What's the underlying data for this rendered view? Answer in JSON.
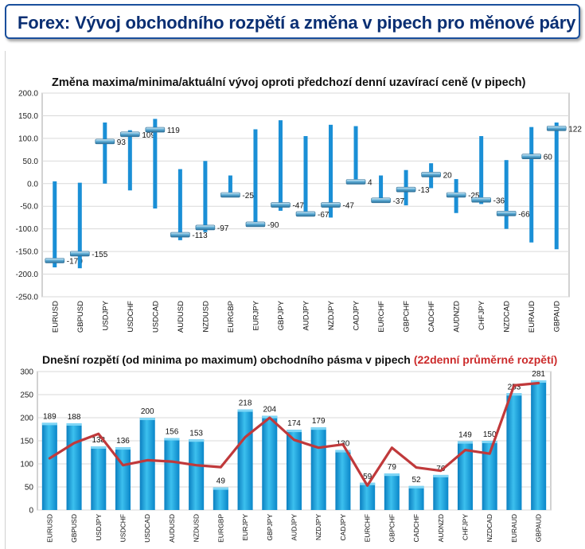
{
  "header": {
    "title": "Forex: Vývoj obchodního rozpětí a změna v pipech pro měnové páry"
  },
  "chart_data": [
    {
      "type": "bar",
      "title": "Změna maxima/minima/aktuální vývoj oproti předchozí denní uzavírací ceně (v pipech)",
      "categories": [
        "EURUSD",
        "GBPUSD",
        "USDJPY",
        "USDCHF",
        "USDCAD",
        "AUDUSD",
        "NZDUSD",
        "EURGBP",
        "EURJPY",
        "GBPJPY",
        "AUDJPY",
        "NZDJPY",
        "CADJPY",
        "EURCHF",
        "GBPCHF",
        "CADCHF",
        "AUDNZD",
        "CHFJPY",
        "NZDCAD",
        "EURAUD",
        "GBPAUD"
      ],
      "series": [
        {
          "values": [
            5,
            2,
            135,
            118,
            143,
            32,
            50,
            18,
            120,
            140,
            105,
            130,
            127,
            18,
            30,
            45,
            10,
            105,
            52,
            125,
            135
          ]
        },
        {
          "values": [
            -185,
            -187,
            0,
            -15,
            -55,
            -125,
            -107,
            -28,
            -95,
            -60,
            -72,
            -75,
            0,
            -40,
            -48,
            -10,
            -65,
            -45,
            -100,
            -130,
            -145
          ]
        },
        {
          "values": [
            -170,
            -155,
            93,
            109,
            119,
            -113,
            -97,
            -25,
            -90,
            -47,
            -67,
            -47,
            4,
            -37,
            -13,
            20,
            -25,
            -36,
            -66,
            60,
            122
          ]
        }
      ],
      "data_labels": [
        "-170",
        "-155",
        "93",
        "109",
        "119",
        "-113",
        "-97",
        "-25",
        "-90",
        "-47",
        "-67",
        "-47",
        "4",
        "-37",
        "-13",
        "20",
        "-25",
        "-36",
        "-66",
        "60",
        "122"
      ],
      "yticks": [
        "200.0",
        "150.0",
        "100.0",
        "50.0",
        "0.0",
        "-50.0",
        "-100.0",
        "-150.0",
        "-200.0",
        "-250.0"
      ],
      "ylim": [
        -250,
        200
      ],
      "grid": true,
      "colors": {
        "range": "#1a8fd6",
        "marker": "#3a8fc0"
      }
    },
    {
      "type": "bar",
      "title": "Dnešní rozpětí (od minima po maximum) obchodního pásma v pipech",
      "title_highlight": "(22denní průměrné rozpětí)",
      "categories": [
        "EURUSD",
        "GBPUSD",
        "USDJPY",
        "USDCHF",
        "USDCAD",
        "AUDUSD",
        "NZDUSD",
        "EURGBP",
        "EURJPY",
        "GBPJPY",
        "AUDJPY",
        "NZDJPY",
        "CADJPY",
        "EURCHF",
        "GBPCHF",
        "CADCHF",
        "AUDNZD",
        "CHFJPY",
        "NZDCAD",
        "EURAUD",
        "GBPAUD"
      ],
      "series": [
        {
          "values": [
            189,
            188,
            138,
            136,
            200,
            156,
            153,
            49,
            218,
            204,
            174,
            179,
            130,
            59,
            79,
            52,
            76,
            149,
            150,
            253,
            281
          ]
        },
        {
          "values": [
            112,
            145,
            165,
            97,
            108,
            105,
            97,
            93,
            158,
            200,
            152,
            135,
            142,
            53,
            135,
            92,
            85,
            130,
            122,
            270,
            275
          ]
        }
      ],
      "data_labels": [
        "189",
        "188",
        "138",
        "136",
        "200",
        "156",
        "153",
        "49",
        "218",
        "204",
        "174",
        "179",
        "130",
        "59",
        "79",
        "52",
        "76",
        "149",
        "150",
        "253",
        "281"
      ],
      "yticks": [
        "300",
        "250",
        "200",
        "150",
        "100",
        "50",
        "0"
      ],
      "ylim": [
        0,
        300
      ],
      "grid": true,
      "colors": {
        "bar": "#13a0d8",
        "line": "#c0393b",
        "highlight": "#cc2b2b"
      }
    }
  ]
}
